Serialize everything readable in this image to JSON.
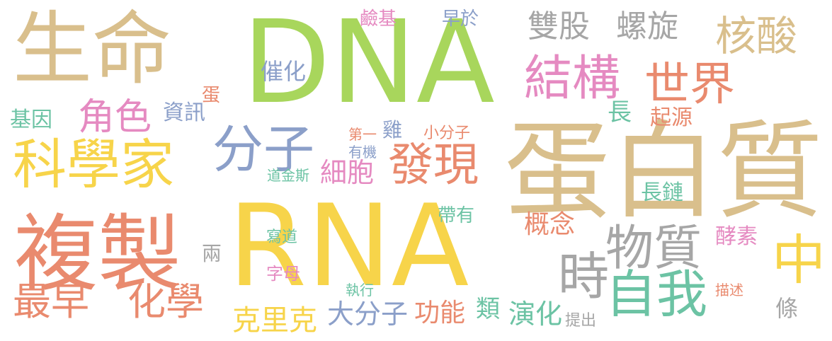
{
  "palette": {
    "green": "#a8d65c",
    "yellow": "#f7d44a",
    "tan": "#d9bf8c",
    "salmon": "#e98a6e",
    "pink": "#e58ac1",
    "blue": "#8b9fc9",
    "teal": "#6cc3a4",
    "gray": "#a6a6a6"
  },
  "words": [
    "DNA",
    "RNA",
    "蛋白質",
    "複製",
    "生命",
    "分子",
    "科學家",
    "結構",
    "世界",
    "中",
    "物質",
    "時",
    "自我",
    "發現",
    "核酸",
    "螺旋",
    "雙股",
    "角色",
    "化學",
    "最早",
    "細胞",
    "克里克",
    "大分子",
    "功能",
    "演化",
    "條",
    "長",
    "基因",
    "資訊",
    "催化",
    "類",
    "概念",
    "酵素",
    "起源",
    "長鏈",
    "兩",
    "蛋",
    "早於",
    "鹼基",
    "雞",
    "第一",
    "小分子",
    "帶有",
    "有機",
    "道金斯",
    "寫道",
    "字母",
    "執行",
    "提出",
    "描述"
  ]
}
